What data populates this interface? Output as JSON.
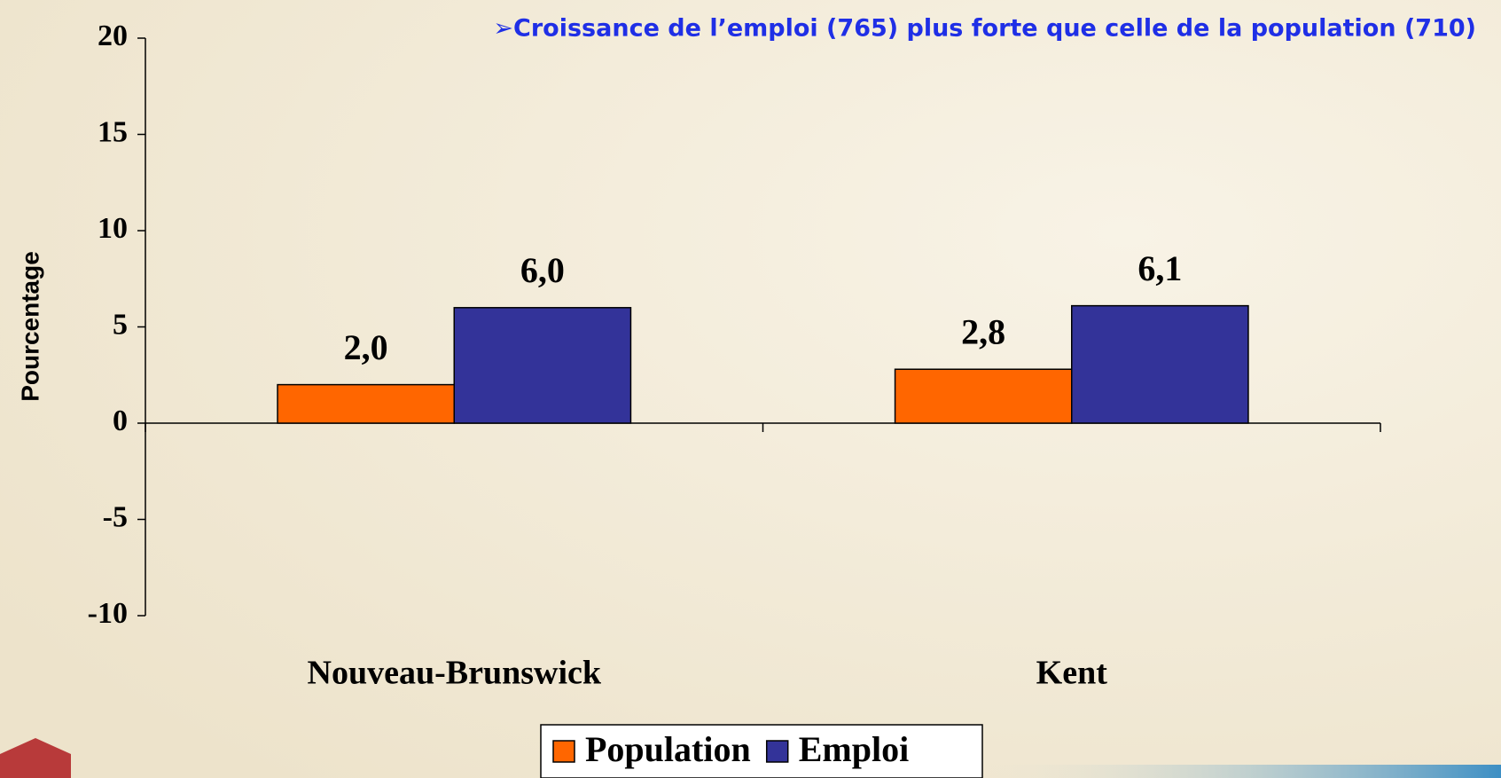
{
  "chart_data": {
    "type": "bar",
    "title": "➢Croissance de l’emploi (765) plus forte que celle de la population (710)",
    "y_label": "Pourcentage",
    "categories": [
      "Nouveau-Brunswick",
      "Kent"
    ],
    "series": [
      {
        "name": "Population",
        "color": "#ff6600",
        "values": [
          2.0,
          2.8
        ],
        "value_labels": [
          "2,0",
          "2,8"
        ]
      },
      {
        "name": "Emploi",
        "color": "#333399",
        "values": [
          6.0,
          6.1
        ],
        "value_labels": [
          "6,0",
          "6,1"
        ]
      }
    ],
    "ylim": [
      -10,
      20
    ],
    "yticks": [
      -10,
      -5,
      0,
      5,
      10,
      15,
      20
    ],
    "legend": "bottom"
  }
}
